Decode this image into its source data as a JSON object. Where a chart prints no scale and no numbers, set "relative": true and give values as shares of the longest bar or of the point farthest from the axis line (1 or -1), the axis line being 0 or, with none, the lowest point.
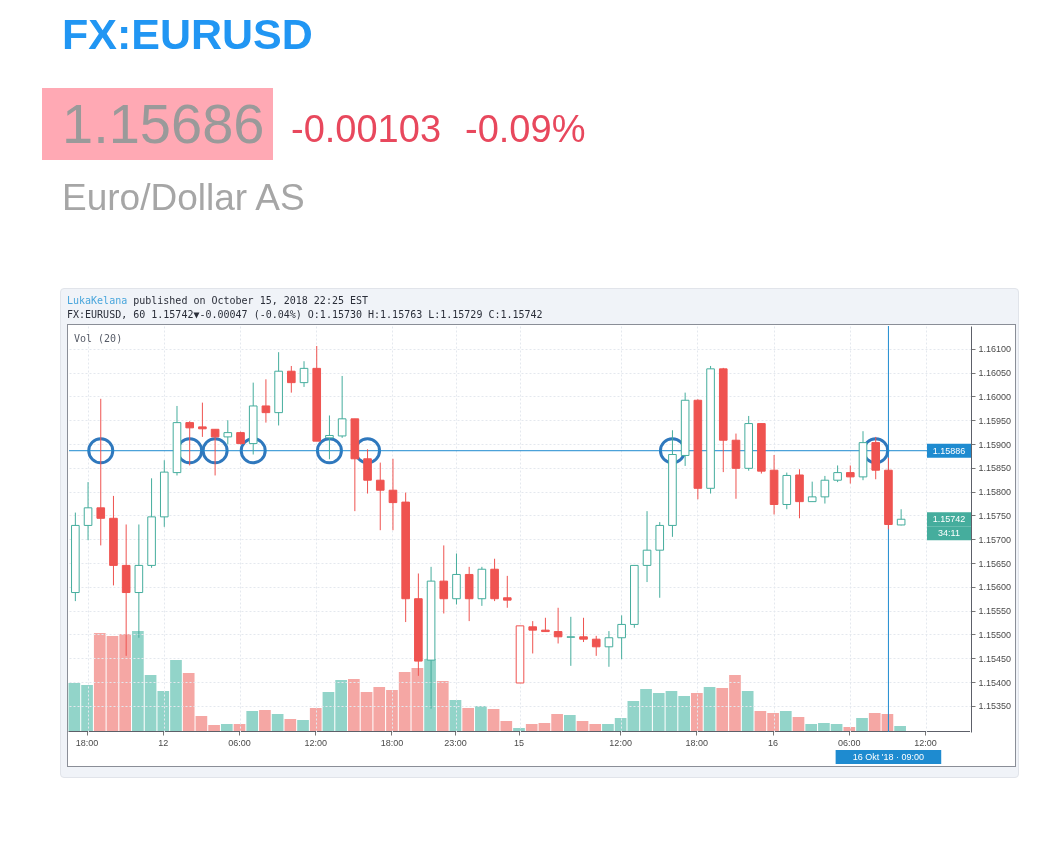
{
  "chart_data": [
    {
      "type": "candlestick",
      "title": "FX:EURUSD",
      "subtitle": "Euro/Dollar AS",
      "tick_labels": "y",
      "categories": [
        null,
        "18:00",
        null,
        null,
        null,
        null,
        null,
        "12",
        null,
        null,
        null,
        null,
        null,
        "06:00",
        null,
        null,
        null,
        null,
        null,
        "12:00",
        null,
        null,
        null,
        null,
        null,
        "18:00",
        null,
        null,
        null,
        null,
        "23:00",
        null,
        null,
        null,
        null,
        "15",
        null,
        null,
        null,
        null,
        null,
        null,
        null,
        "12:00",
        null,
        null,
        null,
        null,
        null,
        "18:00",
        null,
        null,
        null,
        null,
        null,
        "16",
        null,
        null,
        null,
        null,
        null,
        "06:00",
        null,
        null,
        "16 Okt '18 · 09:00",
        null,
        null,
        "12:00",
        null,
        null,
        null
      ],
      "ohlc": [
        [
          1.15588,
          1.15756,
          1.1557,
          1.15729
        ],
        [
          1.15729,
          1.1582,
          1.15698,
          1.15766
        ],
        [
          1.15766,
          1.15995,
          1.15687,
          1.15744
        ],
        [
          1.15744,
          1.15791,
          1.15603,
          1.15645
        ],
        [
          1.15645,
          1.15731,
          1.15455,
          1.15588
        ],
        [
          1.15588,
          1.15731,
          1.15493,
          1.15645
        ],
        [
          1.15645,
          1.15828,
          1.1564,
          1.15747
        ],
        [
          1.15747,
          1.15866,
          1.15726,
          1.15841
        ],
        [
          1.1584,
          1.1598,
          1.15834,
          1.15945
        ],
        [
          1.15945,
          1.15948,
          1.15855,
          1.15934
        ],
        [
          1.15936,
          1.15987,
          1.15915,
          1.15932
        ],
        [
          1.15931,
          1.15931,
          1.15834,
          1.15915
        ],
        [
          1.15915,
          1.1595,
          1.15899,
          1.15924
        ],
        [
          1.15924,
          1.15926,
          1.15899,
          1.15901
        ],
        [
          1.15901,
          1.16029,
          1.15878,
          1.1598
        ],
        [
          1.1598,
          1.16036,
          1.15945,
          1.15966
        ],
        [
          1.15966,
          1.16093,
          1.15939,
          1.16053
        ],
        [
          1.16053,
          1.16064,
          1.16008,
          1.16029
        ],
        [
          1.16029,
          1.16074,
          1.1602,
          1.16059
        ],
        [
          1.16059,
          1.16106,
          1.15906,
          1.15906
        ],
        [
          1.15913,
          1.1596,
          1.15868,
          1.15918
        ],
        [
          1.15917,
          1.16043,
          1.15913,
          1.15953
        ],
        [
          1.15953,
          1.15953,
          1.15759,
          1.15869
        ],
        [
          1.15869,
          1.15889,
          1.15796,
          1.15824
        ],
        [
          1.15824,
          1.15861,
          1.15719,
          1.15803
        ],
        [
          1.15803,
          1.15869,
          1.15719,
          1.15777
        ],
        [
          1.15778,
          1.15798,
          1.15526,
          1.15575
        ],
        [
          1.15575,
          1.15628,
          1.15413,
          1.15444
        ],
        [
          1.15446,
          1.15642,
          1.15344,
          1.15612
        ],
        [
          1.15612,
          1.15687,
          1.15544,
          1.15575
        ],
        [
          1.15575,
          1.1567,
          1.15563,
          1.15626
        ],
        [
          1.15626,
          1.15642,
          1.15528,
          1.15575
        ],
        [
          1.15575,
          1.15642,
          1.1556,
          1.15637
        ],
        [
          1.15637,
          1.15659,
          1.1557,
          1.15575
        ],
        [
          1.15577,
          1.15623,
          1.15556,
          1.15572
        ],
        [
          1.15398,
          1.15518,
          1.15398,
          1.15518
        ],
        [
          1.15516,
          1.15528,
          1.1546,
          1.15509
        ],
        [
          1.15509,
          1.15535,
          1.15506,
          1.15506
        ],
        [
          1.15506,
          1.15556,
          1.15481,
          1.15495
        ],
        [
          1.15494,
          1.15537,
          1.15434,
          1.15495
        ],
        [
          1.15495,
          1.15535,
          1.15484,
          1.1549
        ],
        [
          1.1549,
          1.15497,
          1.15455,
          1.15474
        ],
        [
          1.15474,
          1.15507,
          1.15432,
          1.15493
        ],
        [
          1.15493,
          1.1554,
          1.15448,
          1.15521
        ],
        [
          1.15521,
          1.15645,
          1.15514,
          1.15645
        ],
        [
          1.15645,
          1.15759,
          1.1561,
          1.15677
        ],
        [
          1.15677,
          1.15736,
          1.15577,
          1.15729
        ],
        [
          1.15729,
          1.15929,
          1.15705,
          1.15878
        ],
        [
          1.15876,
          1.16008,
          1.15854,
          1.15992
        ],
        [
          1.15992,
          1.15994,
          1.15784,
          1.15807
        ],
        [
          1.15807,
          1.16064,
          1.15796,
          1.16058
        ],
        [
          1.16058,
          1.1606,
          1.15841,
          1.15908
        ],
        [
          1.15908,
          1.15922,
          1.15785,
          1.15849
        ],
        [
          1.15849,
          1.15959,
          1.15844,
          1.15943
        ],
        [
          1.15943,
          1.15943,
          1.15838,
          1.15843
        ],
        [
          1.15845,
          1.15877,
          1.15752,
          1.15773
        ],
        [
          1.15773,
          1.1584,
          1.15763,
          1.15834
        ],
        [
          1.15835,
          1.15847,
          1.15744,
          1.15779
        ],
        [
          1.15779,
          1.15821,
          1.15779,
          1.15789
        ],
        [
          1.15789,
          1.15833,
          1.15775,
          1.15824
        ],
        [
          1.15824,
          1.15855,
          1.1582,
          1.1584
        ],
        [
          1.1584,
          1.15855,
          1.15817,
          1.15831
        ],
        [
          1.15831,
          1.15927,
          1.15824,
          1.15903
        ],
        [
          1.15903,
          1.15915,
          1.15826,
          1.15845
        ],
        [
          1.15845,
          1.15871,
          1.15721,
          1.15731
        ],
        [
          1.1573,
          1.15763,
          1.15729,
          1.15742
        ],
        null,
        null,
        null,
        null,
        null
      ],
      "colors": [
        "#45ad9d",
        "#45ad9d",
        "#ef5350",
        "#ef5350",
        "#ef5350",
        "#45ad9d",
        "#45ad9d",
        "#45ad9d",
        "#45ad9d",
        "#ef5350",
        "#ef5350",
        "#ef5350",
        "#45ad9d",
        "#ef5350",
        "#45ad9d",
        "#ef5350",
        "#45ad9d",
        "#ef5350",
        "#45ad9d",
        "#ef5350",
        "#45ad9d",
        "#45ad9d",
        "#ef5350",
        "#ef5350",
        "#ef5350",
        "#ef5350",
        "#ef5350",
        "#ef5350",
        "#45ad9d",
        "#ef5350",
        "#45ad9d",
        "#ef5350",
        "#45ad9d",
        "#ef5350",
        "#ef5350",
        "#ef5350",
        "#ef5350",
        "#ef5350",
        "#ef5350",
        "#45ad9d",
        "#ef5350",
        "#ef5350",
        "#45ad9d",
        "#45ad9d",
        "#45ad9d",
        "#45ad9d",
        "#45ad9d",
        "#45ad9d",
        "#45ad9d",
        "#ef5350",
        "#45ad9d",
        "#ef5350",
        "#ef5350",
        "#45ad9d",
        "#ef5350",
        "#ef5350",
        "#45ad9d",
        "#ef5350",
        "#45ad9d",
        "#45ad9d",
        "#45ad9d",
        "#ef5350",
        "#45ad9d",
        "#ef5350",
        "#ef5350",
        "#45ad9d",
        null,
        null,
        null,
        null,
        null
      ],
      "series": [
        {
          "type": "scatter",
          "color": "#2f78bd",
          "marker": "circle",
          "values": [
            null,
            null,
            1.15886,
            null,
            null,
            null,
            null,
            null,
            null,
            1.15886,
            null,
            1.15886,
            null,
            null,
            1.15886,
            null,
            null,
            null,
            null,
            null,
            1.15886,
            null,
            null,
            1.15886,
            null,
            null,
            null,
            null,
            null,
            null,
            null,
            null,
            null,
            null,
            null,
            null,
            null,
            null,
            null,
            null,
            null,
            null,
            null,
            null,
            null,
            null,
            null,
            1.15886,
            null,
            null,
            null,
            null,
            null,
            null,
            null,
            null,
            null,
            null,
            null,
            null,
            null,
            null,
            null,
            1.15886,
            null,
            null,
            null,
            null,
            null,
            null,
            null
          ]
        }
      ],
      "ylim": [
        1.15295,
        1.16148
      ],
      "yticks": [
        {
          "value": 1.1535,
          "label": "1.15350"
        },
        {
          "value": 1.154,
          "label": "1.15400"
        },
        {
          "value": 1.1545,
          "label": "1.15450"
        },
        {
          "value": 1.155,
          "label": "1.15500"
        },
        {
          "value": 1.1555,
          "label": "1.15550"
        },
        {
          "value": 1.156,
          "label": "1.15600"
        },
        {
          "value": 1.1565,
          "label": "1.15650"
        },
        {
          "value": 1.157,
          "label": "1.15700"
        },
        {
          "value": 1.1575,
          "label": "1.15750"
        },
        {
          "value": 1.158,
          "label": "1.15800"
        },
        {
          "value": 1.1585,
          "label": "1.15850"
        },
        {
          "value": 1.159,
          "label": "1.15900"
        },
        {
          "value": 1.1595,
          "label": "1.15950"
        },
        {
          "value": 1.16,
          "label": "1.16000"
        },
        {
          "value": 1.1605,
          "label": "1.16050"
        },
        {
          "value": 1.161,
          "label": "1.16100"
        }
      ],
      "grid": true,
      "ref_lines": [
        {
          "axis": "y",
          "value": 1.15886,
          "label": "1.15886",
          "color": "#1e8bd0"
        },
        {
          "axis": "x",
          "value": "16 Okt '18 · 09:00",
          "color": "#1e8bd0"
        }
      ],
      "annotations": [
        "1.15686",
        "-0.00103",
        "-0.09%",
        "LukaKelana",
        "published on October 15, 2018 22:25 EST",
        "FX:EURUSD, 60 1.15742▼-0.00047 (-0.04%) O:1.15730 H:1.15763 L:1.15729 C:1.15742",
        {
          "text": "1.15742",
          "y": 1.15742
        },
        "34:11"
      ]
    },
    {
      "type": "bar",
      "title": "Vol (20)",
      "relative": true,
      "tick_labels": "x",
      "categories": [
        null,
        "18:00",
        null,
        null,
        null,
        null,
        null,
        "12",
        null,
        null,
        null,
        null,
        null,
        "06:00",
        null,
        null,
        null,
        null,
        null,
        "12:00",
        null,
        null,
        null,
        null,
        null,
        "18:00",
        null,
        null,
        null,
        null,
        "23:00",
        null,
        null,
        null,
        null,
        "15",
        null,
        null,
        null,
        null,
        null,
        null,
        null,
        "12:00",
        null,
        null,
        null,
        null,
        null,
        "18:00",
        null,
        null,
        null,
        null,
        null,
        "16",
        null,
        null,
        null,
        null,
        null,
        "06:00",
        null,
        null,
        null,
        null,
        null,
        "12:00",
        null,
        null,
        null
      ],
      "values": [
        0.48,
        0.46,
        0.98,
        0.95,
        0.97,
        1,
        0.56,
        0.4,
        0.71,
        0.58,
        0.15,
        0.06,
        0.07,
        0.07,
        0.2,
        0.21,
        0.17,
        0.12,
        0.11,
        0.23,
        0.39,
        0.51,
        0.52,
        0.39,
        0.44,
        0.41,
        0.59,
        0.63,
        0.72,
        0.5,
        0.31,
        0.23,
        0.25,
        0.22,
        0.1,
        0.03,
        0.07,
        0.08,
        0.17,
        0.16,
        0.1,
        0.07,
        0.07,
        0.13,
        0.3,
        0.42,
        0.38,
        0.4,
        0.35,
        0.38,
        0.44,
        0.43,
        0.56,
        0.4,
        0.2,
        0.18,
        0.2,
        0.14,
        0.07,
        0.08,
        0.07,
        0.04,
        0.13,
        0.18,
        0.17,
        0.05,
        null,
        null,
        null,
        null,
        null
      ],
      "colors": [
        "#92d4c9",
        "#92d4c9",
        "#f5a7a4",
        "#f5a7a4",
        "#f5a7a4",
        "#92d4c9",
        "#92d4c9",
        "#92d4c9",
        "#92d4c9",
        "#f5a7a4",
        "#f5a7a4",
        "#f5a7a4",
        "#92d4c9",
        "#f5a7a4",
        "#92d4c9",
        "#f5a7a4",
        "#92d4c9",
        "#f5a7a4",
        "#92d4c9",
        "#f5a7a4",
        "#92d4c9",
        "#92d4c9",
        "#f5a7a4",
        "#f5a7a4",
        "#f5a7a4",
        "#f5a7a4",
        "#f5a7a4",
        "#f5a7a4",
        "#92d4c9",
        "#f5a7a4",
        "#92d4c9",
        "#f5a7a4",
        "#92d4c9",
        "#f5a7a4",
        "#f5a7a4",
        "#92d4c9",
        "#f5a7a4",
        "#f5a7a4",
        "#f5a7a4",
        "#92d4c9",
        "#f5a7a4",
        "#f5a7a4",
        "#92d4c9",
        "#92d4c9",
        "#92d4c9",
        "#92d4c9",
        "#92d4c9",
        "#92d4c9",
        "#92d4c9",
        "#f5a7a4",
        "#92d4c9",
        "#f5a7a4",
        "#f5a7a4",
        "#92d4c9",
        "#f5a7a4",
        "#f5a7a4",
        "#92d4c9",
        "#f5a7a4",
        "#92d4c9",
        "#92d4c9",
        "#92d4c9",
        "#f5a7a4",
        "#92d4c9",
        "#f5a7a4",
        "#f5a7a4",
        "#92d4c9",
        null,
        null,
        null,
        null,
        null
      ]
    }
  ]
}
